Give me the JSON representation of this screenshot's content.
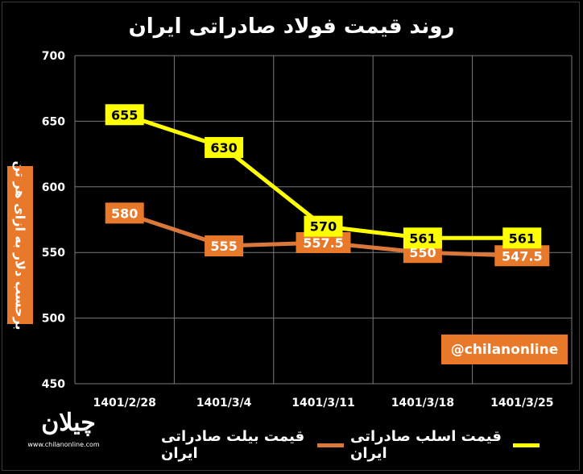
{
  "chart_data": {
    "type": "line",
    "title": "روند قیمت فولاد صادراتی ایران",
    "ylabel": "برحسب دلار به ازای هر تن",
    "xlabel": "",
    "categories": [
      "1401/2/28",
      "1401/3/4",
      "1401/3/11",
      "1401/3/18",
      "1401/3/25"
    ],
    "ylim": [
      450,
      700
    ],
    "yticks": [
      450,
      500,
      550,
      600,
      650,
      700
    ],
    "grid": true,
    "legend_position": "bottom",
    "series": [
      {
        "name": "قیمت بیلت صادراتی ایران",
        "color": "#d9783a",
        "label_bg": "#e8782a",
        "label_fg": "#ffffff",
        "values": [
          580,
          555,
          557.5,
          550,
          547.5
        ],
        "labels": [
          "580",
          "555",
          "557.5",
          "550",
          "547.5"
        ]
      },
      {
        "name": "قیمت اسلب صادراتی ایران",
        "color": "#ffff00",
        "label_bg": "#ffff00",
        "label_fg": "#000000",
        "values": [
          655,
          630,
          570,
          561,
          561
        ],
        "labels": [
          "655",
          "630",
          "570",
          "561",
          "561"
        ]
      }
    ]
  },
  "watermark": "@chilanonline",
  "logo": {
    "mark": "چیلان",
    "url": "www.chilanonline.com"
  }
}
